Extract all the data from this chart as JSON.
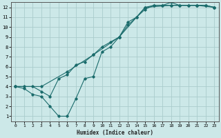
{
  "xlabel": "Humidex (Indice chaleur)",
  "background_color": "#cce8e8",
  "grid_color": "#aacccc",
  "line_color": "#1a6b6b",
  "xlim": [
    -0.5,
    23.5
  ],
  "ylim": [
    0.5,
    12.5
  ],
  "xticks": [
    0,
    1,
    2,
    3,
    4,
    5,
    6,
    7,
    8,
    9,
    10,
    11,
    12,
    13,
    14,
    15,
    16,
    17,
    18,
    19,
    20,
    21,
    22,
    23
  ],
  "yticks": [
    1,
    2,
    3,
    4,
    5,
    6,
    7,
    8,
    9,
    10,
    11,
    12
  ],
  "line1_x": [
    0,
    1,
    2,
    3,
    4,
    5,
    6,
    7,
    8,
    9,
    10,
    11,
    12,
    13,
    14,
    15,
    16,
    17,
    18,
    19,
    20,
    21,
    22,
    23
  ],
  "line1_y": [
    4,
    4,
    4,
    3.5,
    3,
    4.8,
    5.2,
    6.2,
    6.5,
    7.2,
    8.0,
    8.5,
    9.0,
    10.2,
    11.0,
    11.8,
    12.2,
    12.2,
    12.2,
    12.2,
    12.2,
    12.2,
    12.2,
    12.0
  ],
  "line2_x": [
    0,
    1,
    2,
    3,
    4,
    5,
    6,
    7,
    8,
    9,
    10,
    11,
    12,
    13,
    14,
    15,
    16,
    17,
    18,
    19,
    20,
    21,
    22,
    23
  ],
  "line2_y": [
    4,
    3.8,
    3.2,
    3.0,
    2.0,
    1.0,
    1.0,
    2.8,
    4.8,
    5.0,
    7.5,
    8.0,
    9.0,
    10.5,
    11.0,
    12.0,
    12.2,
    12.2,
    12.5,
    12.2,
    12.2,
    12.2,
    12.2,
    12.0
  ],
  "line3_x": [
    0,
    3,
    6,
    9,
    12,
    15,
    18,
    21,
    23
  ],
  "line3_y": [
    4,
    4,
    5.5,
    7.2,
    9.0,
    12.0,
    12.2,
    12.2,
    12.0
  ]
}
